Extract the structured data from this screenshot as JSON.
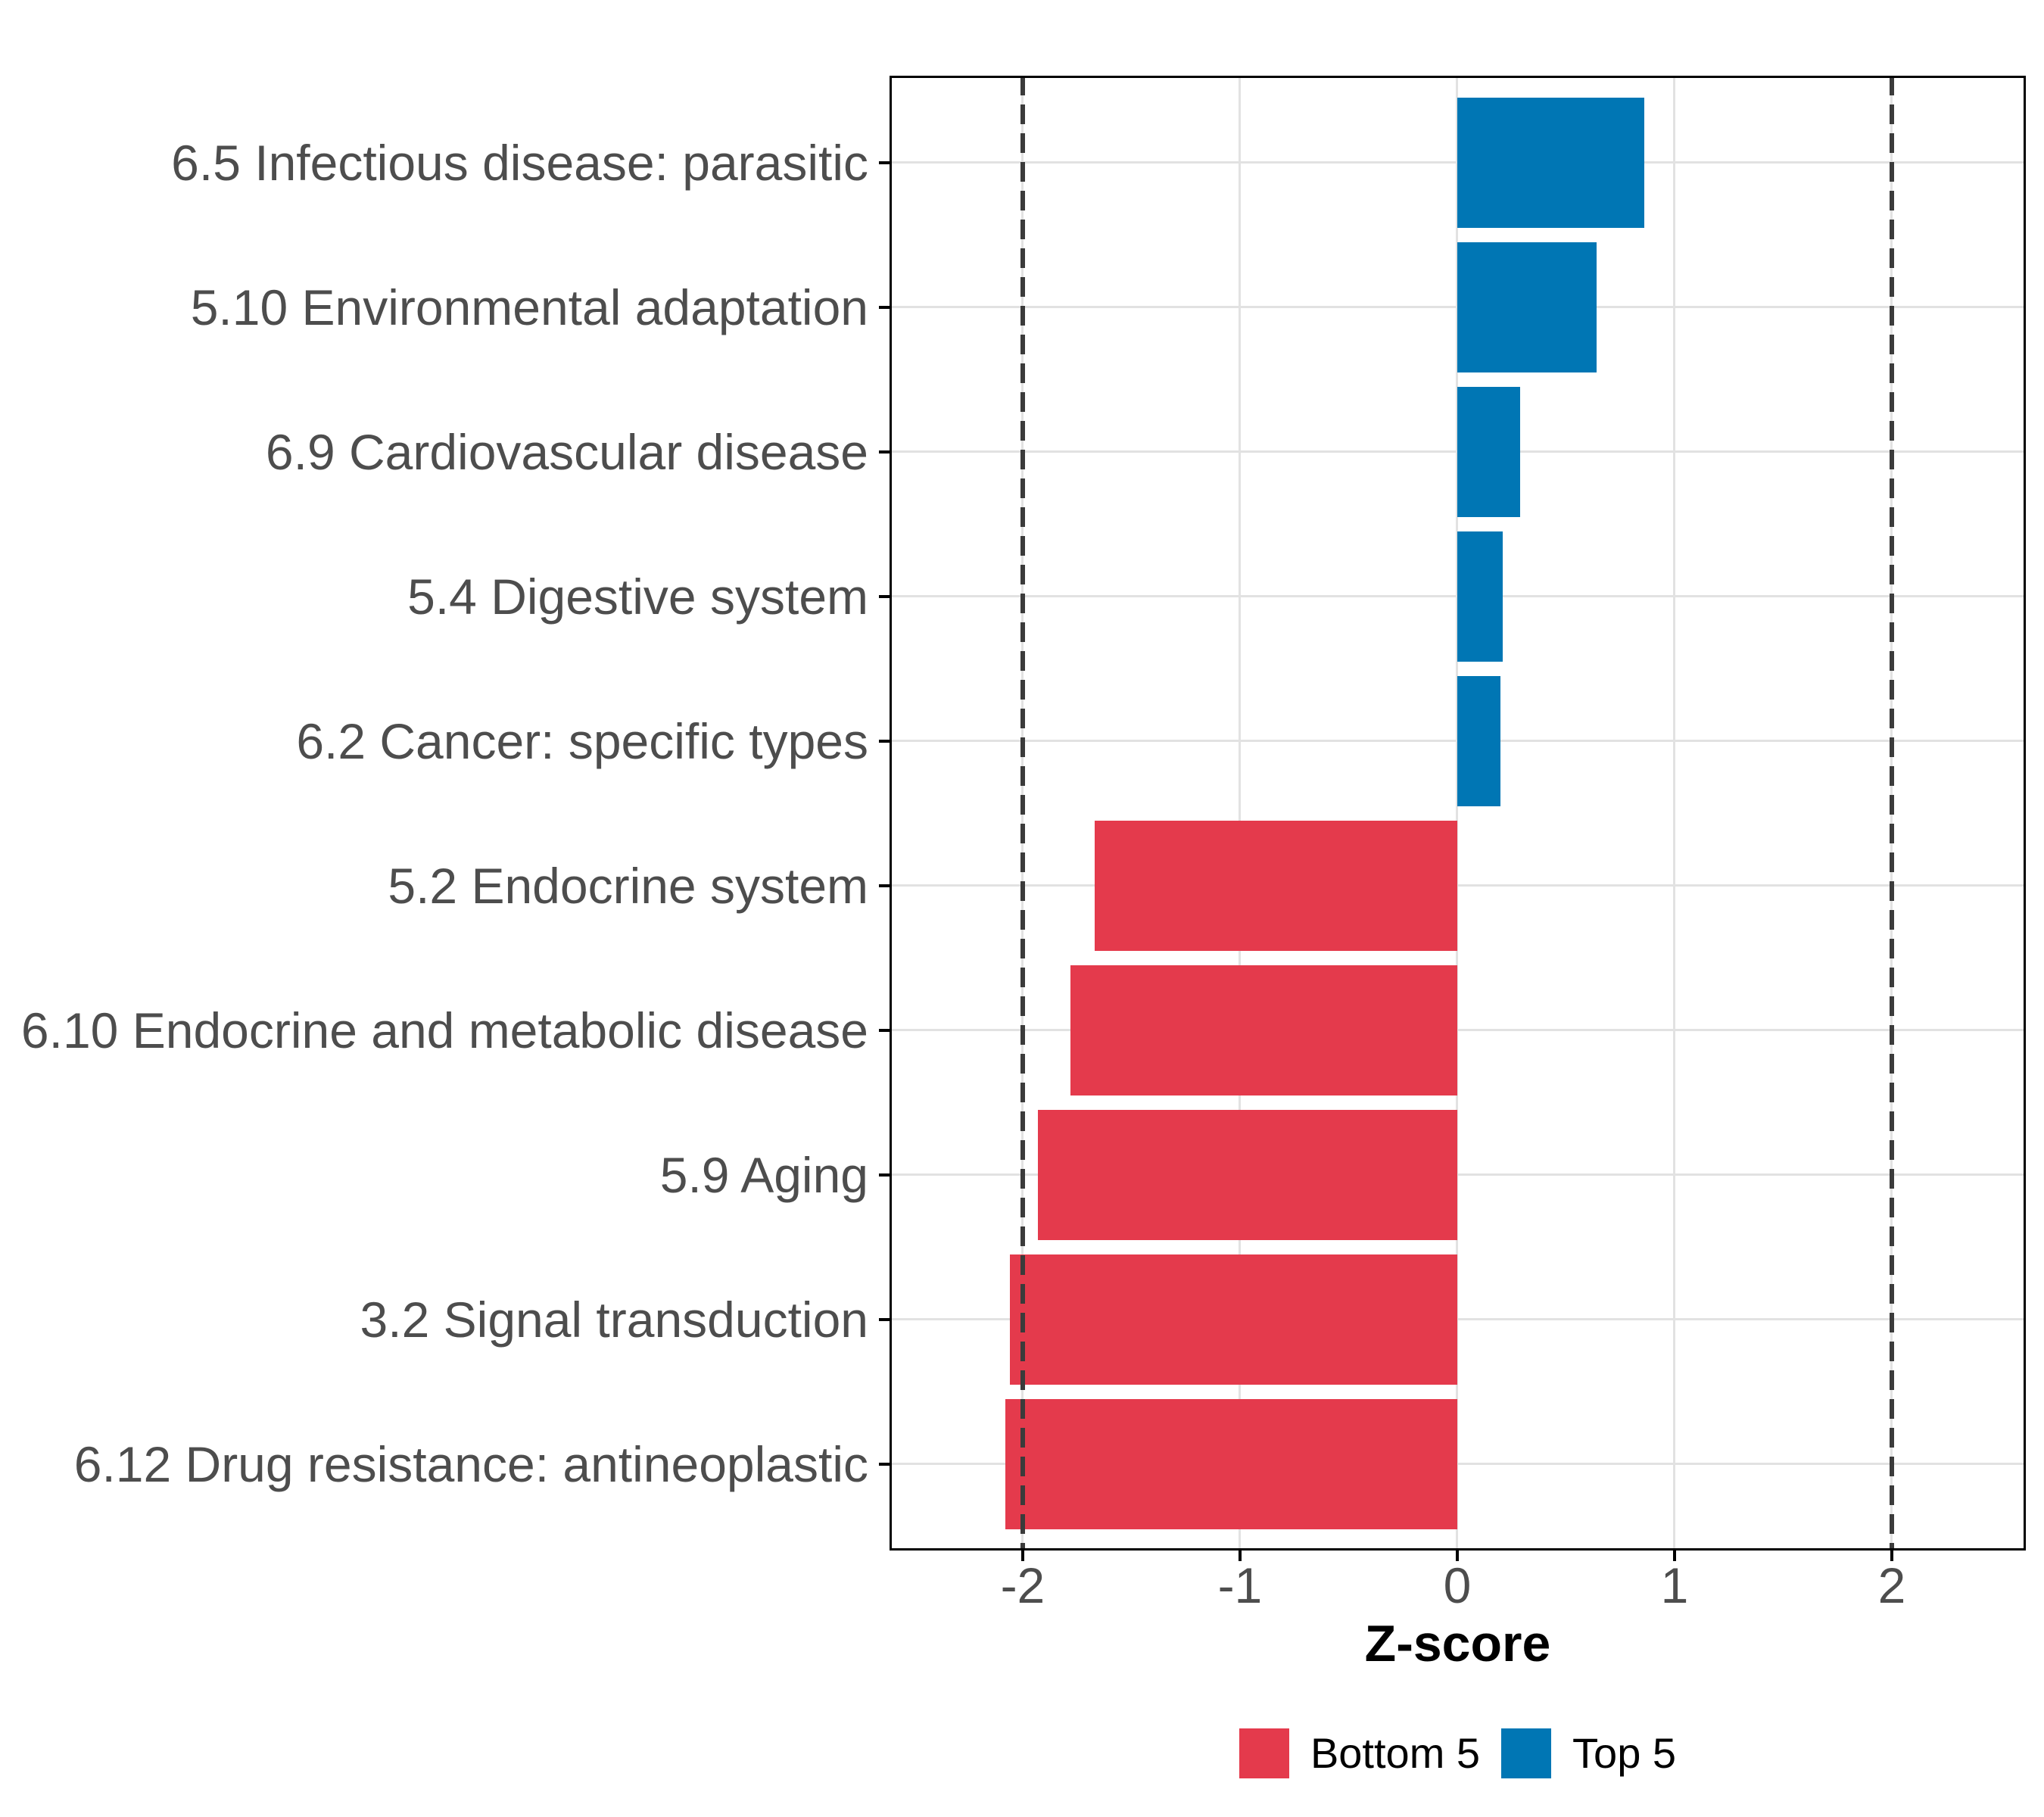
{
  "chart_data": {
    "type": "bar",
    "orientation": "horizontal",
    "title": "",
    "xlabel": "Z-score",
    "ylabel": "",
    "categories": [
      "6.5 Infectious disease: parasitic",
      "5.10 Environmental adaptation",
      "6.9 Cardiovascular disease",
      "5.4 Digestive system",
      "6.2 Cancer: specific types",
      "5.2 Endocrine system",
      "6.10 Endocrine and metabolic disease",
      "5.9 Aging",
      "3.2 Signal transduction",
      "6.12 Drug resistance: antineoplastic"
    ],
    "values": [
      0.86,
      0.64,
      0.29,
      0.21,
      0.2,
      -1.67,
      -1.78,
      -1.93,
      -2.06,
      -2.08
    ],
    "groups": [
      "Top 5",
      "Top 5",
      "Top 5",
      "Top 5",
      "Top 5",
      "Bottom 5",
      "Bottom 5",
      "Bottom 5",
      "Bottom 5",
      "Bottom 5"
    ],
    "colors": {
      "Bottom 5": "#E43A4C",
      "Top 5": "#0076B4"
    },
    "x_ticks": [
      -2,
      -1,
      0,
      1,
      2
    ],
    "x_tick_labels": [
      "-2",
      "-1",
      "0",
      "1",
      "2"
    ],
    "x_domain": [
      -2.613,
      2.617
    ],
    "reference_lines": [
      -2,
      2
    ],
    "grid": true,
    "legend": {
      "position": "bottom",
      "entries": [
        {
          "label": "Bottom 5",
          "color": "#E43A4C"
        },
        {
          "label": "Top 5",
          "color": "#0076B4"
        }
      ]
    }
  },
  "style": {
    "background": "#FFFFFF",
    "panel_border_color": "#000000",
    "grid_color": "#E2E2E2",
    "dashed_line_color": "#3B3B3B",
    "axis_text_color": "#4D4D4D",
    "axis_title_color": "#000000",
    "legend_text_color": "#000000",
    "tick_color": "#000000"
  }
}
